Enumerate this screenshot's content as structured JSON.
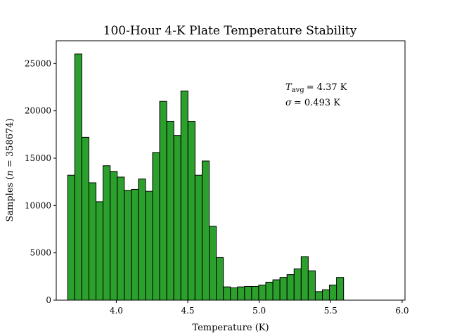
{
  "chart_data": {
    "type": "bar",
    "title": "100-Hour 4-K Plate Temperature Stability",
    "xlabel": "Temperature (K)",
    "ylabel": "Samples (n = 358674)",
    "xlim": [
      3.58,
      6.02
    ],
    "ylim": [
      0,
      27400
    ],
    "bar_color": "#2ca02c",
    "bin_start": 3.66,
    "bin_width": 0.0495,
    "values": [
      13200,
      26000,
      17200,
      12400,
      10400,
      14200,
      13600,
      13000,
      11600,
      11700,
      12800,
      11500,
      15600,
      21000,
      18900,
      17400,
      22100,
      18900,
      13200,
      14700,
      7800,
      4500,
      1400,
      1300,
      1400,
      1450,
      1450,
      1600,
      1900,
      2150,
      2400,
      2700,
      3300,
      4600,
      3100,
      900,
      1100,
      1600,
      2400
    ],
    "x_ticks": [
      {
        "value": 4.0,
        "label": "4.0"
      },
      {
        "value": 4.5,
        "label": "4.5"
      },
      {
        "value": 5.0,
        "label": "5.0"
      },
      {
        "value": 5.5,
        "label": "5.5"
      },
      {
        "value": 6.0,
        "label": "6.0"
      }
    ],
    "y_ticks": [
      {
        "value": 0,
        "label": "0"
      },
      {
        "value": 5000,
        "label": "5000"
      },
      {
        "value": 10000,
        "label": "10000"
      },
      {
        "value": 15000,
        "label": "15000"
      },
      {
        "value": 20000,
        "label": "20000"
      },
      {
        "value": 25000,
        "label": "25000"
      }
    ],
    "annotations": {
      "mean": {
        "symbol": "T",
        "subscript": "avg",
        "value": "= 4.37 K"
      },
      "std": {
        "symbol": "σ",
        "value": "= 0.493 K"
      }
    }
  }
}
